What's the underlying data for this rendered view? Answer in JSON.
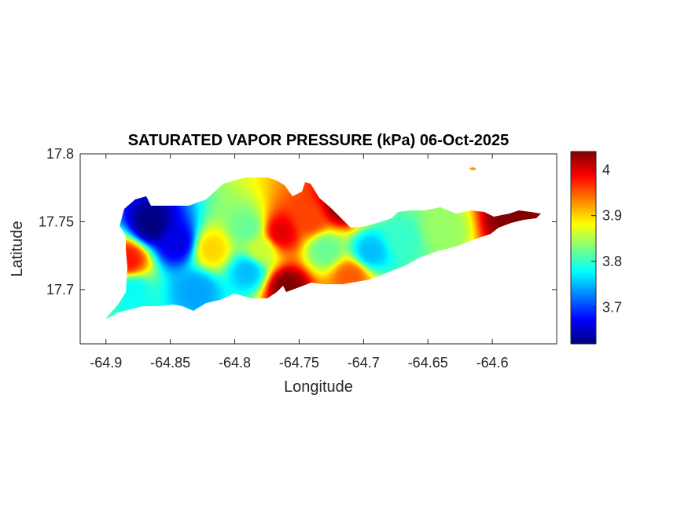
{
  "chart_data": {
    "type": "heatmap",
    "title": "SATURATED VAPOR PRESSURE (kPa) 06-Oct-2025",
    "xlabel": "Longitude",
    "ylabel": "Latitude",
    "xlim": [
      -64.92,
      -64.55
    ],
    "ylim": [
      17.66,
      17.8
    ],
    "x_ticks": [
      -64.9,
      -64.85,
      -64.8,
      -64.75,
      -64.7,
      -64.65,
      -64.6
    ],
    "x_tick_labels": [
      "-64.9",
      "-64.85",
      "-64.8",
      "-64.75",
      "-64.7",
      "-64.65",
      "-64.6"
    ],
    "y_ticks": [
      17.7,
      17.75,
      17.8
    ],
    "y_tick_labels": [
      "17.7",
      "17.75",
      "17.8"
    ],
    "colorbar": {
      "colormap": "jet",
      "range": [
        3.62,
        4.04
      ],
      "ticks": [
        3.7,
        3.8,
        3.9,
        4.0
      ],
      "tick_labels": [
        "3.7",
        "3.8",
        "3.9",
        "4"
      ]
    },
    "hotspots": [
      {
        "lon": -64.865,
        "lat": 17.748,
        "value": 3.62
      },
      {
        "lon": -64.845,
        "lat": 17.735,
        "value": 3.66
      },
      {
        "lon": -64.88,
        "lat": 17.7,
        "value": 3.78
      },
      {
        "lon": -64.83,
        "lat": 17.7,
        "value": 3.74
      },
      {
        "lon": -64.79,
        "lat": 17.745,
        "value": 3.82
      },
      {
        "lon": -64.79,
        "lat": 17.714,
        "value": 3.75
      },
      {
        "lon": -64.818,
        "lat": 17.73,
        "value": 3.9
      },
      {
        "lon": -64.765,
        "lat": 17.742,
        "value": 4.0
      },
      {
        "lon": -64.76,
        "lat": 17.702,
        "value": 4.04
      },
      {
        "lon": -64.742,
        "lat": 17.752,
        "value": 3.96
      },
      {
        "lon": -64.73,
        "lat": 17.73,
        "value": 3.82
      },
      {
        "lon": -64.695,
        "lat": 17.728,
        "value": 3.75
      },
      {
        "lon": -64.718,
        "lat": 17.762,
        "value": 4.03
      },
      {
        "lon": -64.67,
        "lat": 17.738,
        "value": 3.8
      },
      {
        "lon": -64.64,
        "lat": 17.745,
        "value": 3.84
      },
      {
        "lon": -64.71,
        "lat": 17.71,
        "value": 3.95
      },
      {
        "lon": -64.585,
        "lat": 17.753,
        "value": 4.04
      },
      {
        "lon": -64.883,
        "lat": 17.722,
        "value": 3.98
      },
      {
        "lon": -64.78,
        "lat": 17.73,
        "value": 3.86
      }
    ],
    "default_value": 3.9
  }
}
